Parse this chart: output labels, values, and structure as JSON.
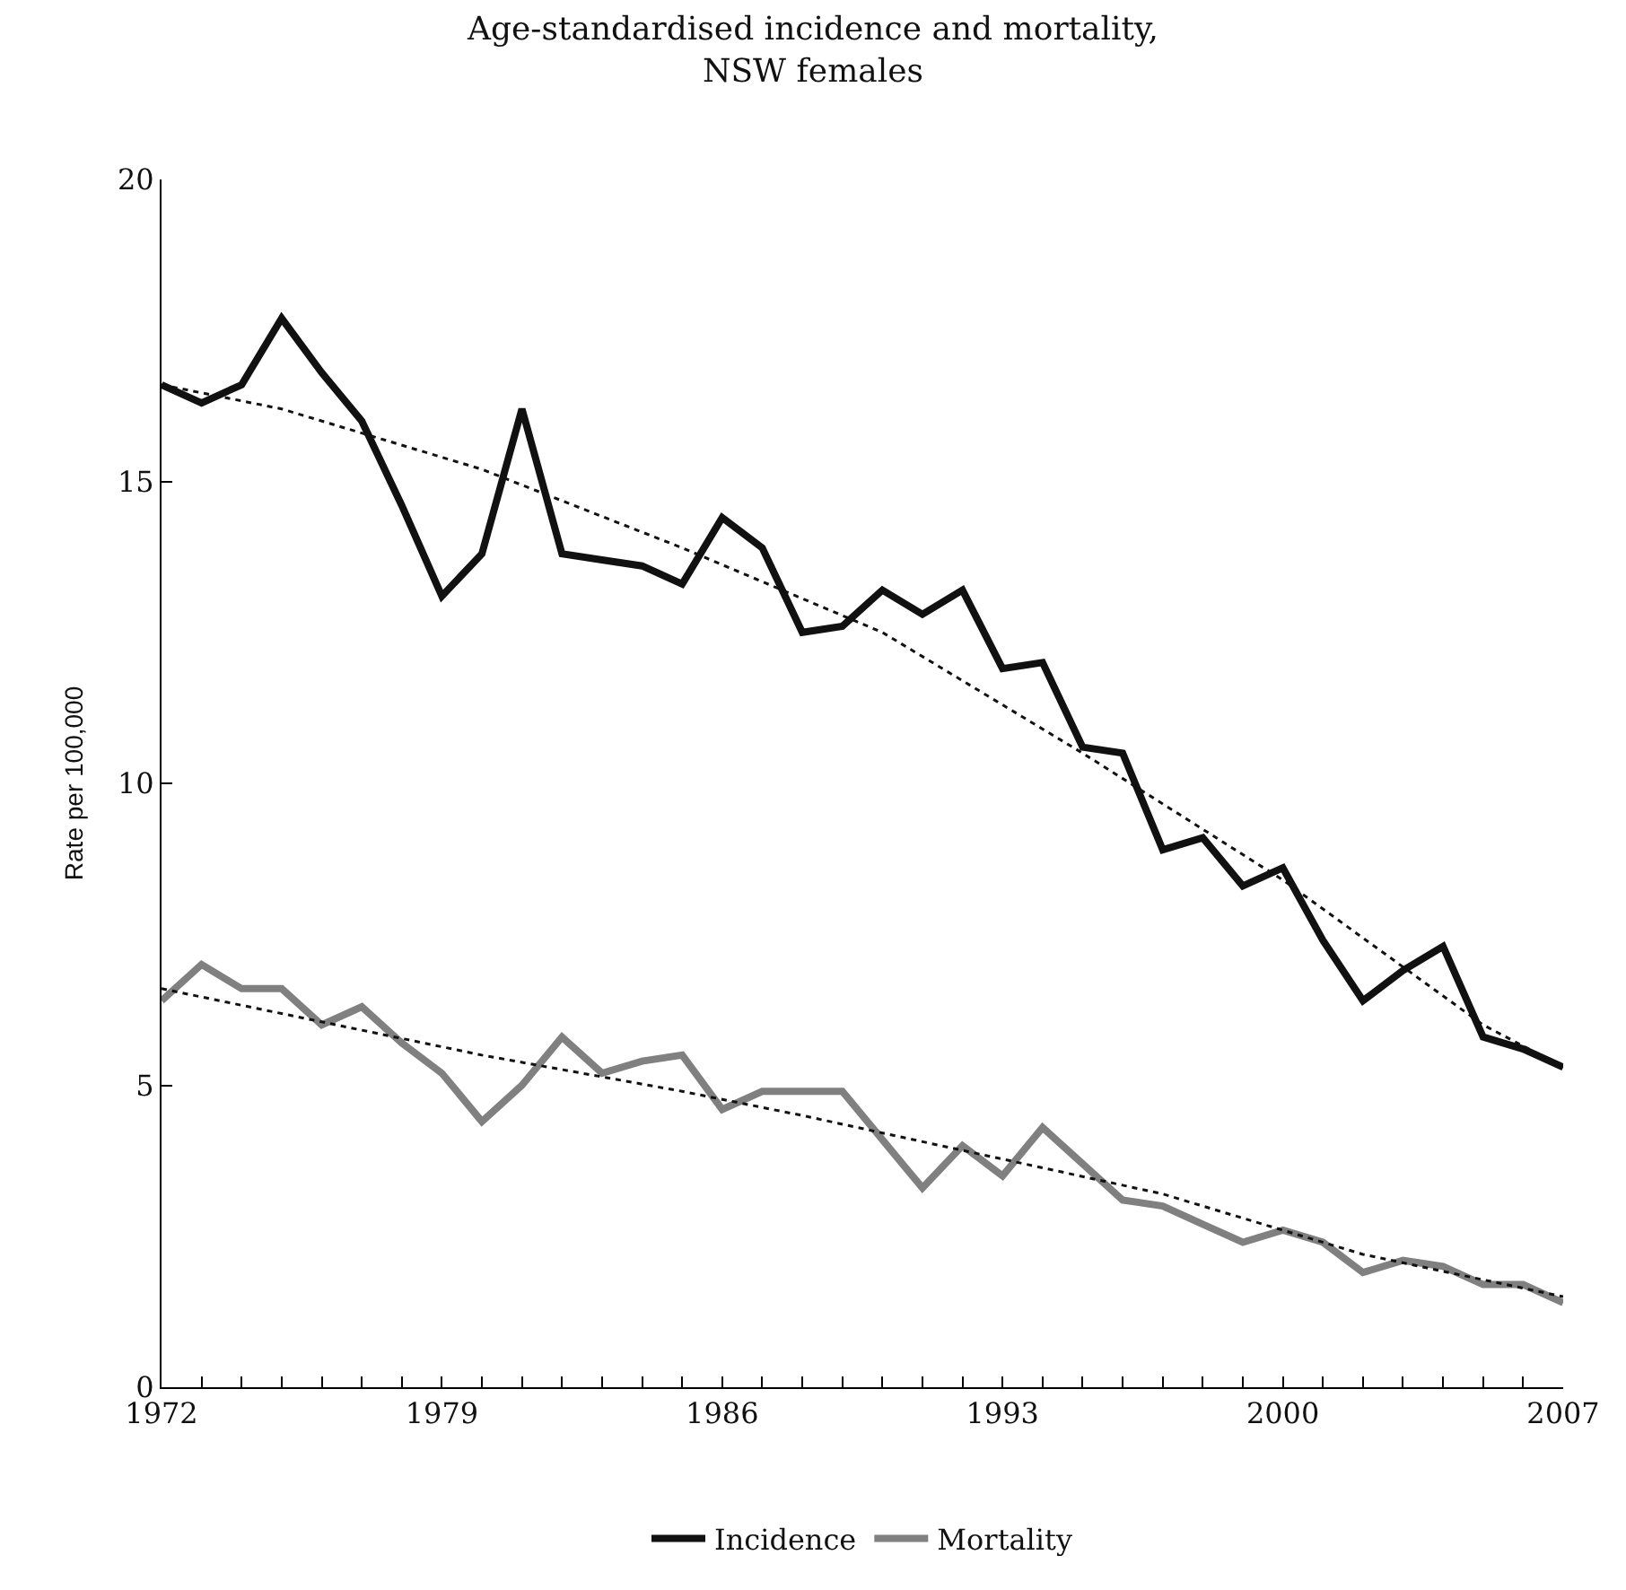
{
  "chart_data": {
    "type": "line",
    "title": "Age-standardised incidence and mortality,\nNSW females",
    "ylabel": "Rate per 100,000",
    "x": [
      1972,
      1973,
      1974,
      1975,
      1976,
      1977,
      1978,
      1979,
      1980,
      1981,
      1982,
      1983,
      1984,
      1985,
      1986,
      1987,
      1988,
      1989,
      1990,
      1991,
      1992,
      1993,
      1994,
      1995,
      1996,
      1997,
      1998,
      1999,
      2000,
      2001,
      2002,
      2003,
      2004,
      2005,
      2006,
      2007
    ],
    "series": [
      {
        "name": "Incidence",
        "color": "#111111",
        "line_style": "solid",
        "values": [
          16.6,
          16.3,
          16.6,
          17.7,
          16.8,
          16.0,
          14.6,
          13.1,
          13.8,
          16.2,
          13.8,
          13.7,
          13.6,
          13.3,
          14.4,
          13.9,
          12.5,
          12.6,
          13.2,
          12.8,
          13.2,
          11.9,
          12.0,
          10.6,
          10.5,
          8.9,
          9.1,
          8.3,
          8.6,
          7.4,
          6.4,
          6.9,
          7.3,
          5.8,
          5.6,
          5.3
        ]
      },
      {
        "name": "Mortality",
        "color": "#808080",
        "line_style": "solid",
        "values": [
          6.4,
          7.0,
          6.6,
          6.6,
          6.0,
          6.3,
          5.7,
          5.2,
          4.4,
          5.0,
          5.8,
          5.2,
          5.4,
          5.5,
          4.6,
          4.9,
          4.9,
          4.9,
          4.1,
          3.3,
          4.0,
          3.5,
          4.3,
          3.7,
          3.1,
          3.0,
          2.7,
          2.4,
          2.6,
          2.4,
          1.9,
          2.1,
          2.0,
          1.7,
          1.7,
          1.4
        ]
      },
      {
        "type": "line",
        "color": "#111111",
        "line_style": "dotted",
        "x": [
          1972,
          1975,
          1980,
          1985,
          1990,
          1995,
          2000,
          2005,
          2007
        ],
        "values": [
          16.6,
          16.2,
          15.2,
          13.9,
          12.5,
          10.5,
          8.4,
          6.0,
          5.3
        ]
      },
      {
        "type": "line",
        "color": "#111111",
        "line_style": "dotted",
        "x": [
          1972,
          1980,
          1985,
          1988,
          1997,
          2002,
          2007
        ],
        "values": [
          6.6,
          5.5,
          4.9,
          4.5,
          3.2,
          2.2,
          1.5
        ]
      }
    ],
    "xlim": [
      1972,
      2007
    ],
    "ylim": [
      0,
      20
    ],
    "yticks": [
      0,
      5,
      10,
      15,
      20
    ],
    "xticks": [
      1972,
      {
        "value": 1973,
        "label": null
      },
      {
        "value": 1974,
        "label": null
      },
      {
        "value": 1975,
        "label": null
      },
      {
        "value": 1976,
        "label": null
      },
      {
        "value": 1977,
        "label": null
      },
      {
        "value": 1978,
        "label": null
      },
      1979,
      {
        "value": 1980,
        "label": null
      },
      {
        "value": 1981,
        "label": null
      },
      {
        "value": 1982,
        "label": null
      },
      {
        "value": 1983,
        "label": null
      },
      {
        "value": 1984,
        "label": null
      },
      {
        "value": 1985,
        "label": null
      },
      1986,
      {
        "value": 1987,
        "label": null
      },
      {
        "value": 1988,
        "label": null
      },
      {
        "value": 1989,
        "label": null
      },
      {
        "value": 1990,
        "label": null
      },
      {
        "value": 1991,
        "label": null
      },
      {
        "value": 1992,
        "label": null
      },
      1993,
      {
        "value": 1994,
        "label": null
      },
      {
        "value": 1995,
        "label": null
      },
      {
        "value": 1996,
        "label": null
      },
      {
        "value": 1997,
        "label": null
      },
      {
        "value": 1998,
        "label": null
      },
      {
        "value": 1999,
        "label": null
      },
      2000,
      {
        "value": 2001,
        "label": null
      },
      {
        "value": 2002,
        "label": null
      },
      {
        "value": 2003,
        "label": null
      },
      {
        "value": 2004,
        "label": null
      },
      {
        "value": 2005,
        "label": null
      },
      {
        "value": 2006,
        "label": null
      },
      2007
    ],
    "legend": "bottom",
    "marker": "none"
  }
}
